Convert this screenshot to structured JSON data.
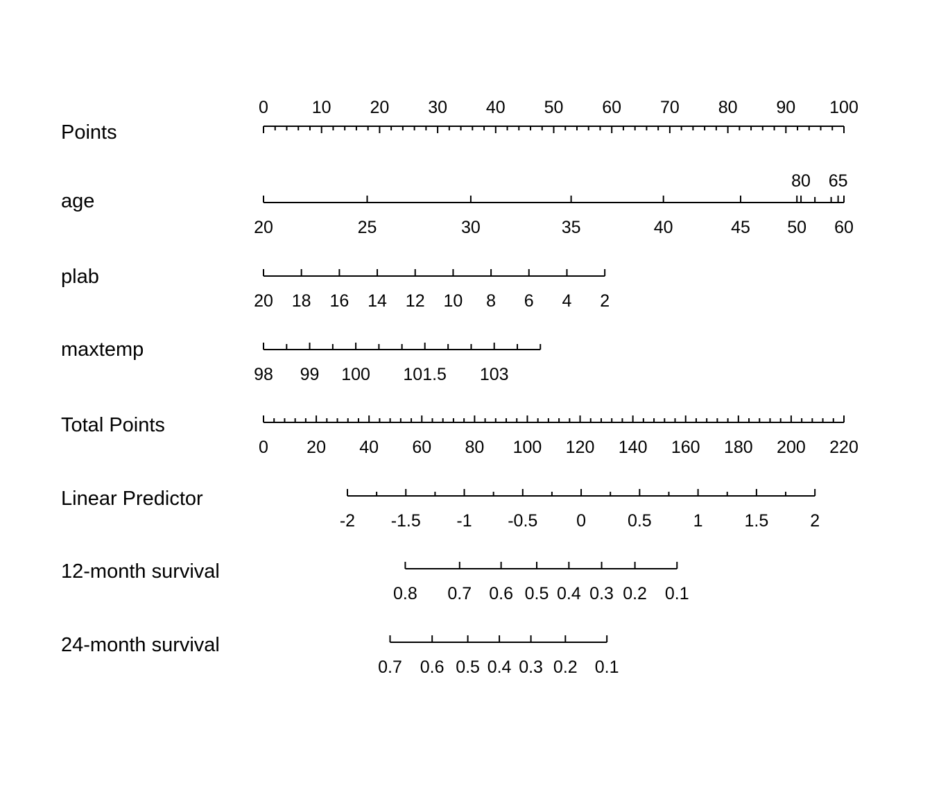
{
  "chart_data": {
    "type": "nomogram",
    "grid": false,
    "rows": [
      {
        "name": "Points",
        "range": [
          0,
          100
        ],
        "labels_position": "above",
        "major_ticks": [
          0,
          10,
          20,
          30,
          40,
          50,
          60,
          70,
          80,
          90,
          100
        ],
        "minor_ticks": [
          2,
          4,
          6,
          8,
          12,
          14,
          16,
          18,
          22,
          24,
          26,
          28,
          32,
          34,
          36,
          38,
          42,
          44,
          46,
          48,
          52,
          54,
          56,
          58,
          62,
          64,
          66,
          68,
          72,
          74,
          76,
          78,
          82,
          84,
          86,
          88,
          92,
          94,
          96,
          98
        ]
      },
      {
        "name": "age",
        "points_range": [
          0,
          100
        ],
        "major_ticks": [
          {
            "value": "20",
            "points": 0,
            "label_position": "below"
          },
          {
            "value": "25",
            "points": 17.86,
            "label_position": "below"
          },
          {
            "value": "30",
            "points": 35.71,
            "label_position": "below"
          },
          {
            "value": "35",
            "points": 53.0,
            "label_position": "below"
          },
          {
            "value": "40",
            "points": 68.9,
            "label_position": "below"
          },
          {
            "value": "45",
            "points": 82.2,
            "label_position": "below"
          },
          {
            "value": "50",
            "points": 91.9,
            "label_position": "below"
          },
          {
            "value": "60",
            "points": 100,
            "label_position": "below"
          },
          {
            "value": "80",
            "points": 92.6,
            "label_position": "above"
          },
          {
            "value": "65",
            "points": 99.0,
            "label_position": "above"
          }
        ],
        "minor_ticks_points": [
          95.0,
          97.8
        ]
      },
      {
        "name": "plab",
        "points_range": [
          0,
          58.8
        ],
        "major_ticks": [
          {
            "value": "20",
            "points": 0
          },
          {
            "value": "18",
            "points": 6.53
          },
          {
            "value": "16",
            "points": 13.07
          },
          {
            "value": "14",
            "points": 19.6
          },
          {
            "value": "12",
            "points": 26.13
          },
          {
            "value": "10",
            "points": 32.67
          },
          {
            "value": "8",
            "points": 39.2
          },
          {
            "value": "6",
            "points": 45.73
          },
          {
            "value": "4",
            "points": 52.27
          },
          {
            "value": "2",
            "points": 58.8
          }
        ]
      },
      {
        "name": "maxtemp",
        "points_range": [
          0,
          47.7
        ],
        "major_ticks": [
          {
            "value": "98",
            "points": 0
          },
          {
            "value": "99",
            "points": 7.95
          },
          {
            "value": "100",
            "points": 15.9
          },
          {
            "value": "101.5",
            "points": 27.8
          },
          {
            "value": "103",
            "points": 39.75
          }
        ],
        "minor_ticks_points": [
          3.98,
          11.93,
          19.88,
          23.85,
          31.8,
          35.78,
          43.73,
          47.7
        ]
      },
      {
        "name": "Total Points",
        "range": [
          0,
          220
        ],
        "major_ticks": [
          0,
          20,
          40,
          60,
          80,
          100,
          120,
          140,
          160,
          180,
          200,
          220
        ],
        "minor_ticks_step": 4
      },
      {
        "name": "Linear Predictor",
        "range": [
          -2,
          2
        ],
        "total_points_range": [
          31.8,
          209.0
        ],
        "major_ticks": [
          "-2",
          "-1.5",
          "-1",
          "-0.5",
          "0",
          "0.5",
          "1",
          "1.5",
          "2"
        ],
        "minor_ticks": [
          -1.75,
          -1.25,
          -0.75,
          -0.25,
          0.25,
          0.75,
          1.25,
          1.75
        ]
      },
      {
        "name": "12-month survival",
        "major_ticks": [
          {
            "value": "0.8",
            "linear_predictor": -1.505
          },
          {
            "value": "0.7",
            "linear_predictor": -1.04
          },
          {
            "value": "0.6",
            "linear_predictor": -0.685
          },
          {
            "value": "0.5",
            "linear_predictor": -0.38
          },
          {
            "value": "0.4",
            "linear_predictor": -0.105
          },
          {
            "value": "0.3",
            "linear_predictor": 0.175
          },
          {
            "value": "0.2",
            "linear_predictor": 0.46
          },
          {
            "value": "0.1",
            "linear_predictor": 0.82
          }
        ]
      },
      {
        "name": "24-month survival",
        "major_ticks": [
          {
            "value": "0.7",
            "linear_predictor": -1.635
          },
          {
            "value": "0.6",
            "linear_predictor": -1.275
          },
          {
            "value": "0.5",
            "linear_predictor": -0.97
          },
          {
            "value": "0.4",
            "linear_predictor": -0.7
          },
          {
            "value": "0.3",
            "linear_predictor": -0.43
          },
          {
            "value": "0.2",
            "linear_predictor": -0.135
          },
          {
            "value": "0.1",
            "linear_predictor": 0.22
          }
        ]
      }
    ]
  }
}
